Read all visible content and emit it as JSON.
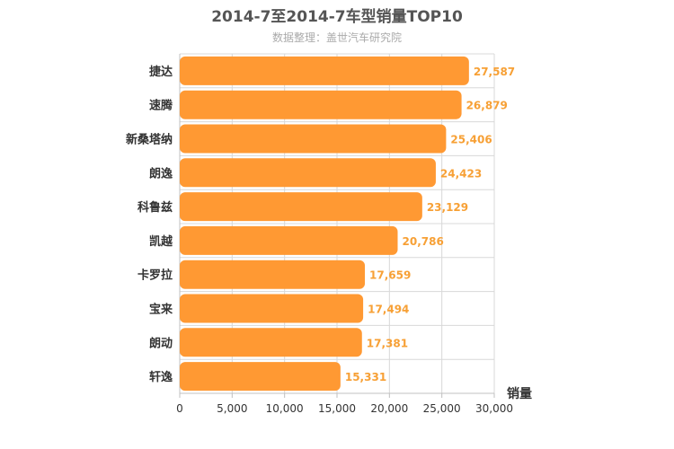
{
  "chart_data": {
    "type": "bar",
    "orientation": "horizontal",
    "title": "2014-7至2014-7车型销量TOP10",
    "subtitle": "数据整理：盖世汽车研究院",
    "categories": [
      "捷达",
      "速腾",
      "新桑塔纳",
      "朗逸",
      "科鲁兹",
      "凯越",
      "卡罗拉",
      "宝来",
      "朗动",
      "轩逸"
    ],
    "values": [
      27587,
      26879,
      25406,
      24423,
      23129,
      20786,
      17659,
      17494,
      17381,
      15331
    ],
    "value_labels": [
      "27,587",
      "26,879",
      "25,406",
      "24,423",
      "23,129",
      "20,786",
      "17,659",
      "17,494",
      "17,381",
      "15,331"
    ],
    "xlabel": "销量",
    "xlim": [
      0,
      30000
    ],
    "xticks": [
      0,
      5000,
      10000,
      15000,
      20000,
      25000,
      30000
    ],
    "xtick_labels": [
      "0",
      "5,000",
      "10,000",
      "15,000",
      "20,000",
      "25,000",
      "30,000"
    ],
    "grid": true,
    "legend": false,
    "bar_color": "#ff9933",
    "data_label_color": "#f7a035",
    "grid_color": "#d8d8d8"
  }
}
